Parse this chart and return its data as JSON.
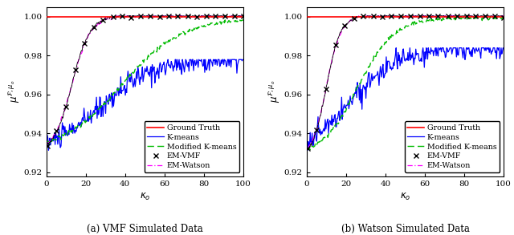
{
  "title_a": "(a) VMF Simulated Data",
  "title_b": "(b) Watson Simulated Data",
  "xlabel": "$\\kappa_o$",
  "ylabel": "$\\mu^{\\mathcal{F},\\mu_o}$",
  "xlim": [
    0,
    100
  ],
  "ylim": [
    0.918,
    1.005
  ],
  "yticks": [
    0.92,
    0.94,
    0.96,
    0.98,
    1.0
  ],
  "xticks": [
    0,
    20,
    40,
    60,
    80,
    100
  ],
  "ground_truth_color": "#ff0000",
  "kmeans_color": "#0000ff",
  "mod_kmeans_color": "#00bb00",
  "em_vmf_color": "#000000",
  "em_watson_color": "#ff00ff"
}
